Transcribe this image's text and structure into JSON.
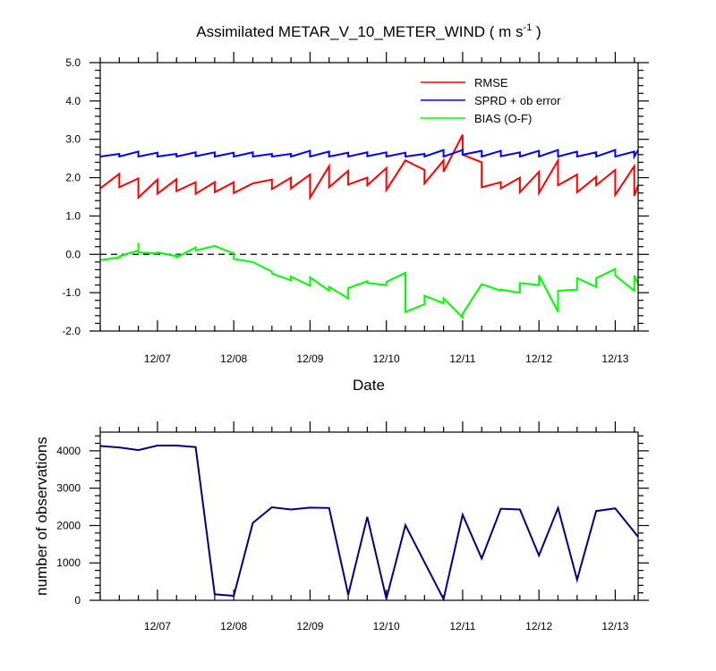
{
  "figure": {
    "title_main": "Assimilated METAR_V_10_METER_WIND ( m s",
    "title_sup": "-1",
    "title_end": " )"
  },
  "chart_data": [
    {
      "type": "line",
      "xlabel": "Date",
      "ylabel": "",
      "ylim": [
        -2.0,
        5.0
      ],
      "xlim": [
        0,
        7.05
      ],
      "yticks": [
        5.0,
        4.0,
        3.0,
        2.0,
        1.0,
        0.0,
        -1.0,
        -2.0
      ],
      "ytick_labels": [
        "5.0",
        "4.0",
        "3.0",
        "2.0",
        "1.0",
        "0.0",
        "-1.0",
        "-2.0"
      ],
      "xticks": [
        0.75,
        1.75,
        2.75,
        3.75,
        4.75,
        5.75,
        6.75
      ],
      "xtick_labels": [
        "12/07",
        "12/08",
        "12/09",
        "12/10",
        "12/11",
        "12/12",
        "12/13"
      ],
      "zero_line": "dashed",
      "legend_position": "top-right",
      "series": [
        {
          "name": "RMSE",
          "color": "#ff0000",
          "points": [
            [
              0,
              1.72
            ],
            [
              0.25,
              2.1
            ],
            [
              0.25,
              1.75
            ],
            [
              0.5,
              1.98
            ],
            [
              0.5,
              1.48
            ],
            [
              0.75,
              1.95
            ],
            [
              0.75,
              1.58
            ],
            [
              1.0,
              1.96
            ],
            [
              1.0,
              1.65
            ],
            [
              1.25,
              1.88
            ],
            [
              1.25,
              1.58
            ],
            [
              1.5,
              1.88
            ],
            [
              1.5,
              1.62
            ],
            [
              1.75,
              1.88
            ],
            [
              1.75,
              1.6
            ],
            [
              2.0,
              1.85
            ],
            [
              2.25,
              1.95
            ],
            [
              2.25,
              1.7
            ],
            [
              2.5,
              2.0
            ],
            [
              2.5,
              1.72
            ],
            [
              2.75,
              2.08
            ],
            [
              2.75,
              1.48
            ],
            [
              3.0,
              2.3
            ],
            [
              3.0,
              1.75
            ],
            [
              3.25,
              2.18
            ],
            [
              3.25,
              1.82
            ],
            [
              3.5,
              2.0
            ],
            [
              3.5,
              1.8
            ],
            [
              3.75,
              2.25
            ],
            [
              3.75,
              1.68
            ],
            [
              4.0,
              2.45
            ],
            [
              4.25,
              2.2
            ],
            [
              4.25,
              1.85
            ],
            [
              4.5,
              2.45
            ],
            [
              4.5,
              2.15
            ],
            [
              4.75,
              3.12
            ],
            [
              4.75,
              2.6
            ],
            [
              5.0,
              2.4
            ],
            [
              5.0,
              2.28
            ],
            [
              5.0,
              1.75
            ],
            [
              5.25,
              1.88
            ],
            [
              5.25,
              1.72
            ],
            [
              5.5,
              2.0
            ],
            [
              5.5,
              1.62
            ],
            [
              5.75,
              2.15
            ],
            [
              5.75,
              1.6
            ],
            [
              6.0,
              2.45
            ],
            [
              6.0,
              1.8
            ],
            [
              6.25,
              2.08
            ],
            [
              6.25,
              1.62
            ],
            [
              6.5,
              2.02
            ],
            [
              6.5,
              1.8
            ],
            [
              6.75,
              2.2
            ],
            [
              6.75,
              1.55
            ],
            [
              7.0,
              2.3
            ],
            [
              7.0,
              1.52
            ],
            [
              7.05,
              1.8
            ]
          ]
        },
        {
          "name": "SPRD + ob error",
          "color": "#0000ff",
          "points": [
            [
              0,
              2.55
            ],
            [
              0.25,
              2.62
            ],
            [
              0.25,
              2.55
            ],
            [
              0.5,
              2.68
            ],
            [
              0.5,
              2.55
            ],
            [
              0.75,
              2.65
            ],
            [
              0.75,
              2.55
            ],
            [
              1.0,
              2.62
            ],
            [
              1.0,
              2.55
            ],
            [
              1.25,
              2.66
            ],
            [
              1.25,
              2.56
            ],
            [
              1.5,
              2.66
            ],
            [
              1.5,
              2.55
            ],
            [
              1.75,
              2.65
            ],
            [
              1.75,
              2.55
            ],
            [
              2.0,
              2.66
            ],
            [
              2.0,
              2.55
            ],
            [
              2.25,
              2.62
            ],
            [
              2.25,
              2.55
            ],
            [
              2.5,
              2.62
            ],
            [
              2.5,
              2.55
            ],
            [
              2.75,
              2.7
            ],
            [
              2.75,
              2.55
            ],
            [
              3.0,
              2.68
            ],
            [
              3.0,
              2.55
            ],
            [
              3.25,
              2.65
            ],
            [
              3.25,
              2.55
            ],
            [
              3.5,
              2.66
            ],
            [
              3.5,
              2.56
            ],
            [
              3.75,
              2.66
            ],
            [
              3.75,
              2.55
            ],
            [
              4.0,
              2.65
            ],
            [
              4.0,
              2.55
            ],
            [
              4.25,
              2.62
            ],
            [
              4.25,
              2.55
            ],
            [
              4.5,
              2.72
            ],
            [
              4.5,
              2.55
            ],
            [
              4.75,
              2.72
            ],
            [
              4.75,
              2.6
            ],
            [
              5.0,
              2.7
            ],
            [
              5.0,
              2.55
            ],
            [
              5.25,
              2.7
            ],
            [
              5.25,
              2.56
            ],
            [
              5.5,
              2.66
            ],
            [
              5.5,
              2.55
            ],
            [
              5.75,
              2.7
            ],
            [
              5.75,
              2.55
            ],
            [
              6.0,
              2.72
            ],
            [
              6.0,
              2.55
            ],
            [
              6.25,
              2.68
            ],
            [
              6.25,
              2.55
            ],
            [
              6.5,
              2.66
            ],
            [
              6.5,
              2.55
            ],
            [
              6.75,
              2.72
            ],
            [
              6.75,
              2.55
            ],
            [
              7.0,
              2.68
            ],
            [
              7.0,
              2.55
            ],
            [
              7.05,
              2.72
            ]
          ]
        },
        {
          "name": "BIAS (O-F)",
          "color": "#00ff00",
          "points": [
            [
              0,
              -0.15
            ],
            [
              0.25,
              -0.08
            ],
            [
              0.25,
              -0.05
            ],
            [
              0.5,
              0.1
            ],
            [
              0.5,
              0.05
            ],
            [
              0.5,
              0.3
            ],
            [
              0.5,
              0.05
            ],
            [
              0.75,
              0.02
            ],
            [
              0.75,
              0.05
            ],
            [
              1.0,
              -0.05
            ],
            [
              1.0,
              0.0
            ],
            [
              1.0,
              -0.08
            ],
            [
              1.25,
              0.18
            ],
            [
              1.25,
              0.1
            ],
            [
              1.5,
              0.22
            ],
            [
              1.75,
              0.02
            ],
            [
              1.75,
              -0.12
            ],
            [
              2.0,
              -0.2
            ],
            [
              2.25,
              -0.45
            ],
            [
              2.25,
              -0.5
            ],
            [
              2.5,
              -0.68
            ],
            [
              2.5,
              -0.58
            ],
            [
              2.75,
              -0.82
            ],
            [
              2.75,
              -0.6
            ],
            [
              3.0,
              -0.95
            ],
            [
              3.0,
              -0.85
            ],
            [
              3.25,
              -1.15
            ],
            [
              3.25,
              -0.88
            ],
            [
              3.5,
              -0.7
            ],
            [
              3.5,
              -0.75
            ],
            [
              3.75,
              -0.8
            ],
            [
              3.75,
              -0.72
            ],
            [
              4.0,
              -0.48
            ],
            [
              4.0,
              -1.5
            ],
            [
              4.25,
              -1.3
            ],
            [
              4.25,
              -1.08
            ],
            [
              4.5,
              -1.28
            ],
            [
              4.5,
              -1.15
            ],
            [
              4.75,
              -1.65
            ],
            [
              4.75,
              -1.55
            ],
            [
              5.0,
              -0.78
            ],
            [
              5.25,
              -0.95
            ],
            [
              5.25,
              -0.92
            ],
            [
              5.5,
              -1.0
            ],
            [
              5.5,
              -0.75
            ],
            [
              5.75,
              -0.8
            ],
            [
              5.75,
              -0.55
            ],
            [
              6.0,
              -1.5
            ],
            [
              6.0,
              -0.95
            ],
            [
              6.25,
              -0.92
            ],
            [
              6.25,
              -0.62
            ],
            [
              6.5,
              -0.85
            ],
            [
              6.5,
              -0.62
            ],
            [
              6.75,
              -0.38
            ],
            [
              6.75,
              -0.55
            ],
            [
              7.0,
              -0.95
            ],
            [
              7.0,
              -0.55
            ],
            [
              7.05,
              -0.78
            ]
          ]
        }
      ]
    },
    {
      "type": "line",
      "xlabel": "",
      "ylabel": "number of observations",
      "ylim": [
        0,
        4500
      ],
      "xlim": [
        0,
        7.05
      ],
      "yticks": [
        0,
        1000,
        2000,
        3000,
        4000
      ],
      "ytick_labels": [
        "0",
        "1000",
        "2000",
        "3000",
        "4000"
      ],
      "xticks": [
        0.75,
        1.75,
        2.75,
        3.75,
        4.75,
        5.75,
        6.75
      ],
      "xtick_labels": [
        "12/07",
        "12/08",
        "12/09",
        "12/10",
        "12/11",
        "12/12",
        "12/13"
      ],
      "series": [
        {
          "name": "number of observations",
          "color": "#000080",
          "points": [
            [
              0,
              4130
            ],
            [
              0.25,
              4090
            ],
            [
              0.5,
              4020
            ],
            [
              0.75,
              4140
            ],
            [
              1.0,
              4140
            ],
            [
              1.25,
              4100
            ],
            [
              1.5,
              160
            ],
            [
              1.75,
              120
            ],
            [
              2.0,
              2070
            ],
            [
              2.25,
              2490
            ],
            [
              2.5,
              2430
            ],
            [
              2.75,
              2480
            ],
            [
              3.0,
              2470
            ],
            [
              3.25,
              150
            ],
            [
              3.5,
              2230
            ],
            [
              3.75,
              40
            ],
            [
              4.0,
              2010
            ],
            [
              4.25,
              1020
            ],
            [
              4.5,
              30
            ],
            [
              4.75,
              2290
            ],
            [
              5.0,
              1120
            ],
            [
              5.25,
              2450
            ],
            [
              5.5,
              2430
            ],
            [
              5.75,
              1200
            ],
            [
              6.0,
              2470
            ],
            [
              6.25,
              550
            ],
            [
              6.5,
              2390
            ],
            [
              6.75,
              2460
            ],
            [
              7.05,
              1700
            ]
          ]
        }
      ]
    }
  ]
}
